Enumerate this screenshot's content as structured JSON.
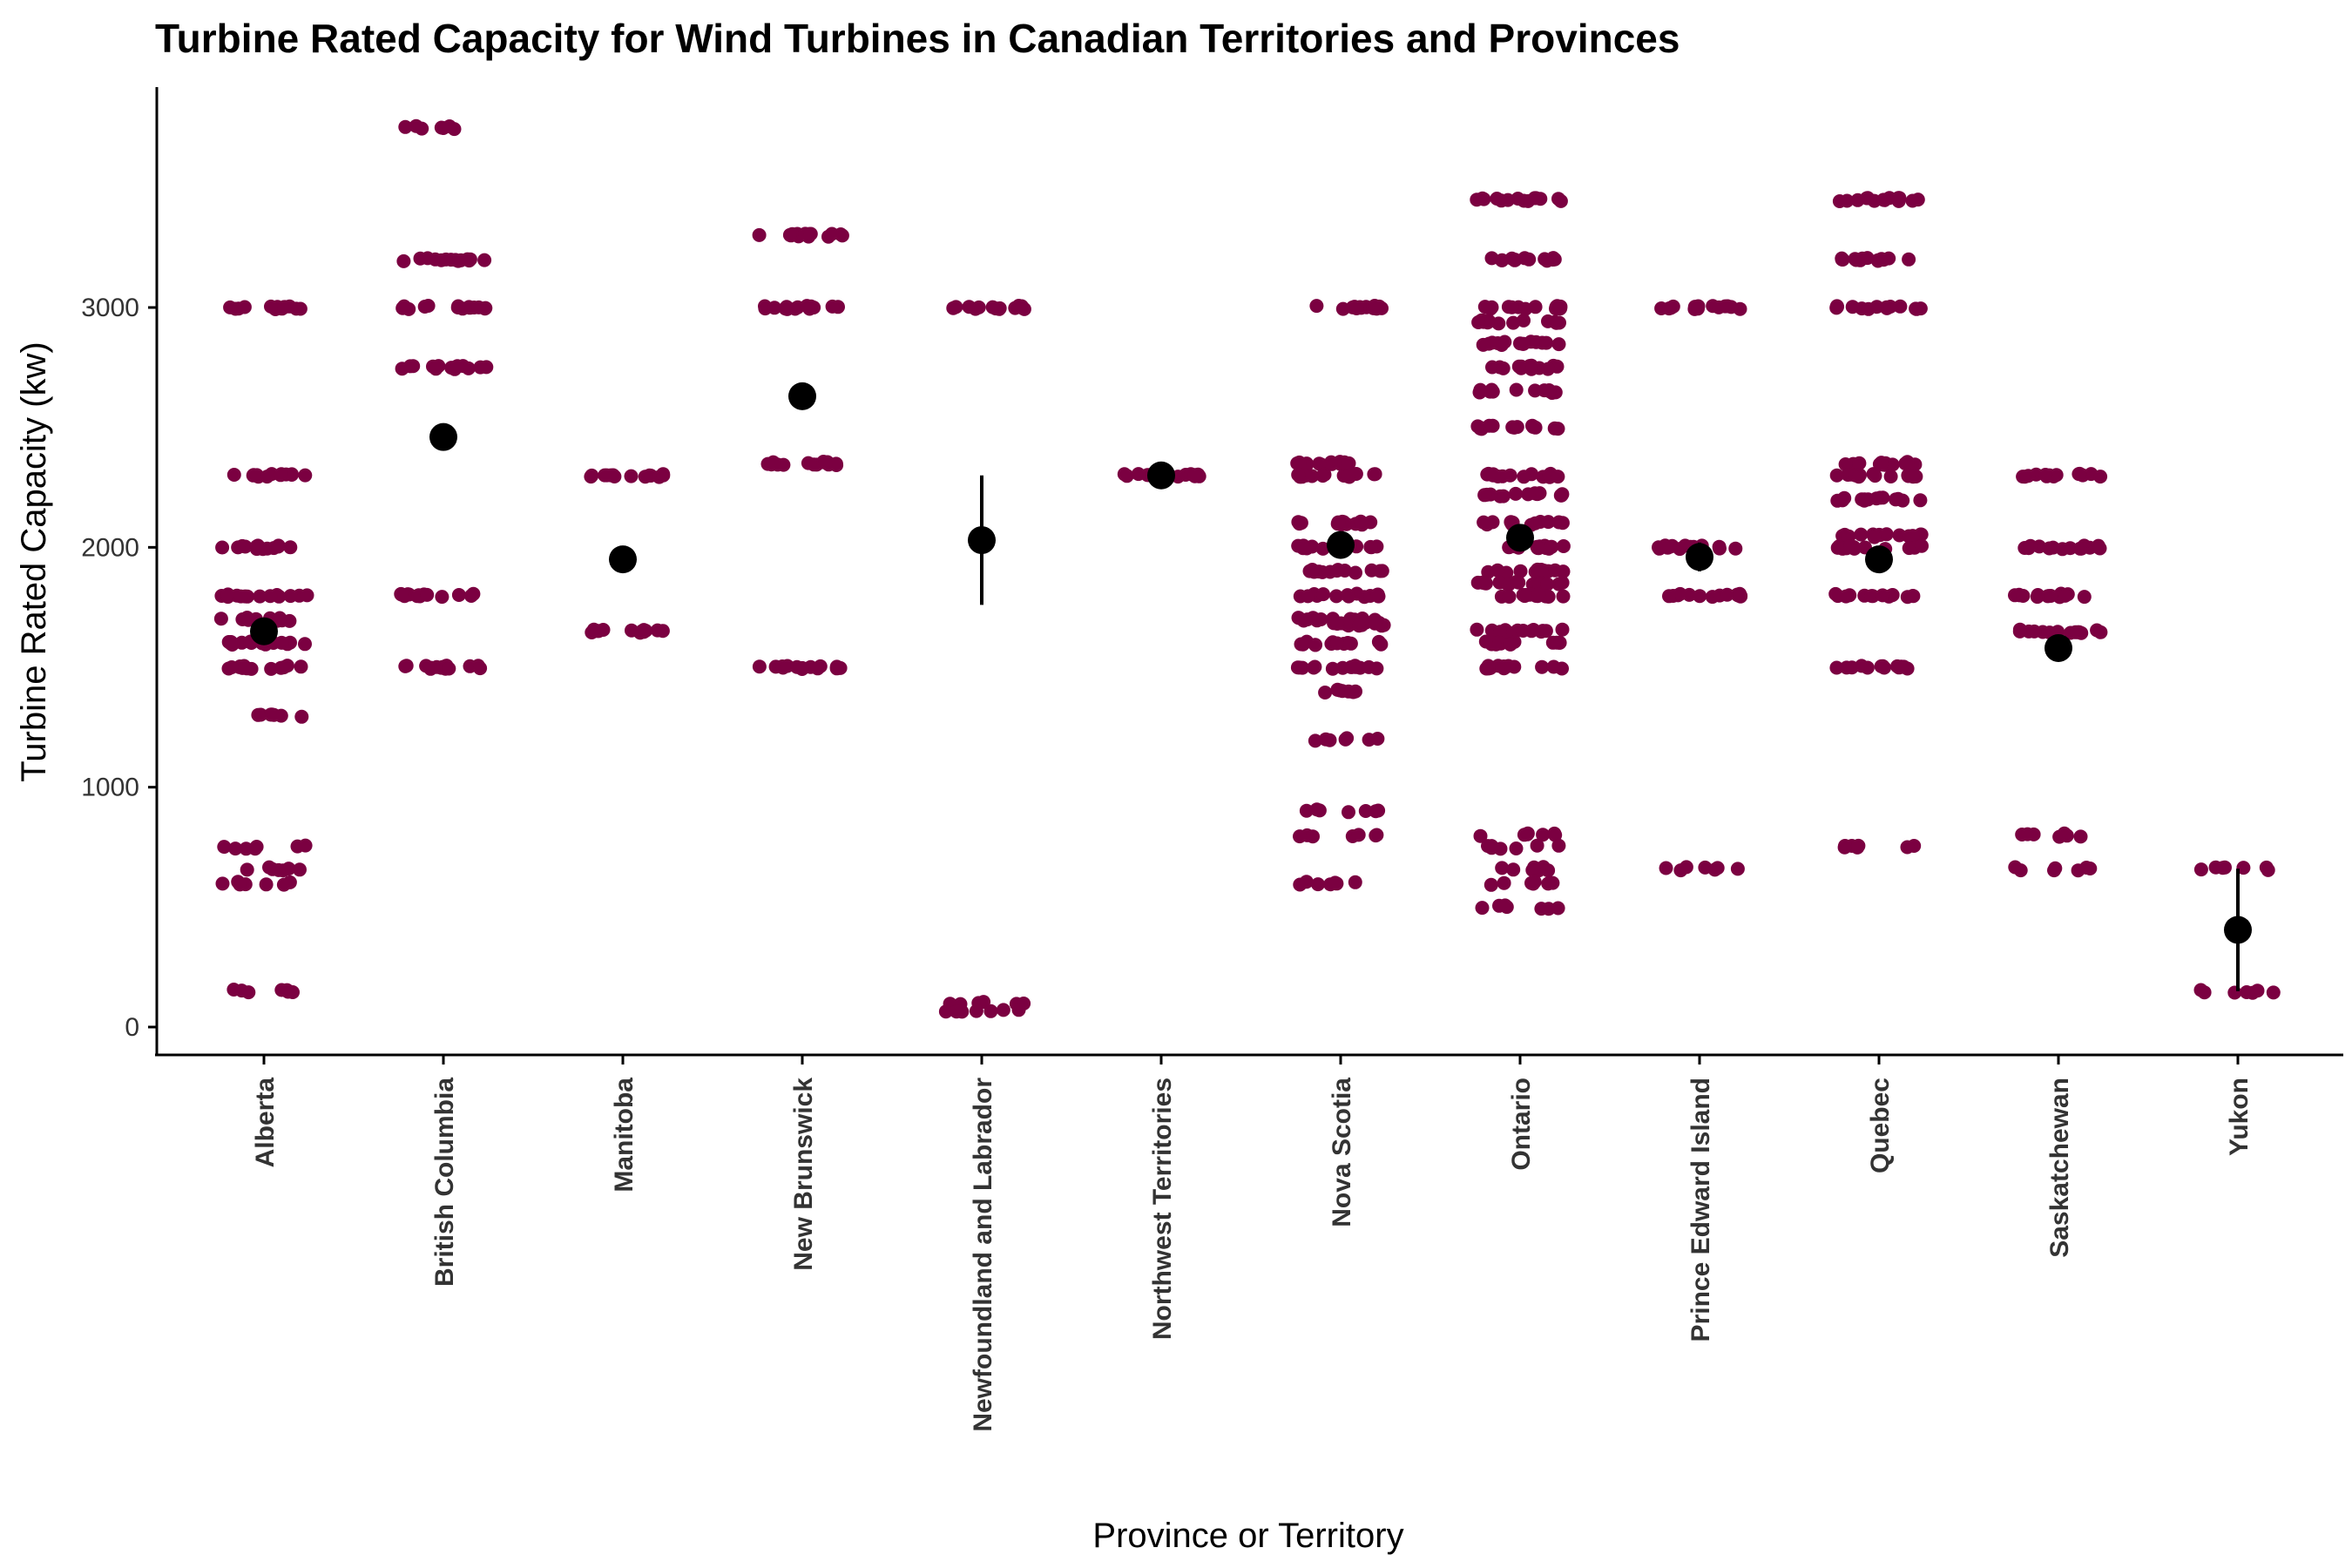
{
  "chart_data": {
    "type": "scatter",
    "title": "Turbine Rated Capacity for Wind Turbines in Canadian Territories and Provinces",
    "xlabel": "Province or Territory",
    "ylabel": "Turbine Rated Capacity (kw)",
    "ylim": [
      -130,
      3900
    ],
    "yticks": [
      0,
      1000,
      2000,
      3000
    ],
    "grid": false,
    "legend": "none",
    "colors": {
      "points": "#7B0041",
      "summary": "#000000"
    },
    "categories": [
      "Alberta",
      "British Columbia",
      "Manitoba",
      "New Brunswick",
      "Newfoundland and Labrador",
      "Northwest Territories",
      "Nova Scotia",
      "Ontario",
      "Prince Edward Island",
      "Quebec",
      "Saskatchewan",
      "Yukon"
    ],
    "series": [
      {
        "values": [
          {
            "category": "Alberta",
            "capacities": [
              3000,
              2300,
              2000,
              1800,
              1700,
              1600,
              1500,
              1300,
              750,
              660,
              600,
              150
            ]
          },
          {
            "category": "British Columbia",
            "capacities": [
              3750,
              3200,
              3000,
              2750,
              1800,
              1500
            ]
          },
          {
            "category": "Manitoba",
            "capacities": [
              2300,
              1650
            ]
          },
          {
            "category": "New Brunswick",
            "capacities": [
              3300,
              3000,
              2350,
              1500
            ]
          },
          {
            "category": "Newfoundland and Labrador",
            "capacities": [
              3000,
              100,
              65
            ]
          },
          {
            "category": "Northwest Territories",
            "capacities": [
              2300
            ]
          },
          {
            "category": "Nova Scotia",
            "capacities": [
              3000,
              2350,
              2300,
              2100,
              2000,
              1900,
              1800,
              1700,
              1680,
              1600,
              1500,
              1400,
              1200,
              900,
              800,
              600
            ]
          },
          {
            "category": "Ontario",
            "capacities": [
              3450,
              3200,
              3000,
              2940,
              2850,
              2750,
              2650,
              2500,
              2300,
              2220,
              2100,
              2000,
              1900,
              1850,
              1800,
              1650,
              1600,
              1500,
              800,
              750,
              660,
              600,
              500
            ]
          },
          {
            "category": "Prince Edward Island",
            "capacities": [
              3000,
              2000,
              1800,
              660
            ]
          },
          {
            "category": "Quebec",
            "capacities": [
              3450,
              3200,
              3000,
              2350,
              2300,
              2200,
              2050,
              2000,
              1800,
              1500,
              750
            ]
          },
          {
            "category": "Saskatchewan",
            "capacities": [
              2300,
              2000,
              1800,
              1650,
              800,
              660
            ]
          },
          {
            "category": "Yukon",
            "capacities": [
              660,
              150
            ]
          }
        ]
      },
      {
        "values": [
          {
            "category": "Alberta",
            "mean": 1650,
            "lower": 1620,
            "upper": 1680
          },
          {
            "category": "British Columbia",
            "mean": 2460,
            "lower": 2430,
            "upper": 2490
          },
          {
            "category": "Manitoba",
            "mean": 1950,
            "lower": 1930,
            "upper": 1970
          },
          {
            "category": "New Brunswick",
            "mean": 2630,
            "lower": 2600,
            "upper": 2660
          },
          {
            "category": "Newfoundland and Labrador",
            "mean": 2030,
            "lower": 1760,
            "upper": 2300
          },
          {
            "category": "Northwest Territories",
            "mean": 2300,
            "lower": 2290,
            "upper": 2310
          },
          {
            "category": "Nova Scotia",
            "mean": 2010,
            "lower": 1980,
            "upper": 2040
          },
          {
            "category": "Ontario",
            "mean": 2040,
            "lower": 2020,
            "upper": 2060
          },
          {
            "category": "Prince Edward Island",
            "mean": 1960,
            "lower": 1900,
            "upper": 2020
          },
          {
            "category": "Quebec",
            "mean": 1950,
            "lower": 1925,
            "upper": 1975
          },
          {
            "category": "Saskatchewan",
            "mean": 1580,
            "lower": 1550,
            "upper": 1610
          },
          {
            "category": "Yukon",
            "mean": 405,
            "lower": 150,
            "upper": 660
          }
        ]
      }
    ]
  }
}
